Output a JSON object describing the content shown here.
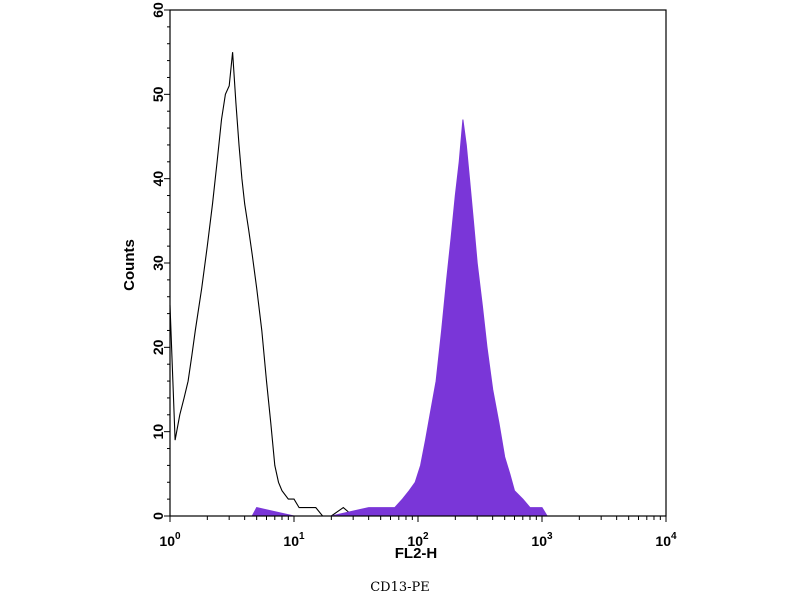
{
  "caption": "CD13-PE",
  "chart_data": {
    "type": "area",
    "title": "",
    "xlabel": "FL2-H",
    "ylabel": "Counts",
    "xscale": "log",
    "xlim": [
      1,
      10000
    ],
    "ylim": [
      0,
      60
    ],
    "xticks": [
      {
        "value": 1,
        "base": "10",
        "exp": "0"
      },
      {
        "value": 10,
        "base": "10",
        "exp": "1"
      },
      {
        "value": 100,
        "base": "10",
        "exp": "2"
      },
      {
        "value": 1000,
        "base": "10",
        "exp": "3"
      },
      {
        "value": 10000,
        "base": "10",
        "exp": "4"
      }
    ],
    "yticks": [
      0,
      10,
      20,
      30,
      40,
      50,
      60
    ],
    "grid": false,
    "series": [
      {
        "style": "outline",
        "color": "#000000",
        "x": [
          1.0,
          1.1,
          1.2,
          1.3,
          1.4,
          1.5,
          1.6,
          1.8,
          2.0,
          2.2,
          2.4,
          2.6,
          2.8,
          3.0,
          3.2,
          3.4,
          3.6,
          3.8,
          4.0,
          4.3,
          4.6,
          5.0,
          5.5,
          6.0,
          6.5,
          7.0,
          7.5,
          8.0,
          9.0,
          10.0,
          11.0,
          12.0,
          13.0,
          15.0,
          17.0,
          20.0,
          25.0,
          30.0
        ],
        "y": [
          25,
          9,
          12,
          14,
          16,
          19,
          22,
          27,
          32,
          37,
          42,
          47,
          50,
          51,
          55,
          49,
          44,
          40,
          37,
          34,
          31,
          27,
          22,
          16,
          11,
          6,
          4,
          3,
          2,
          2,
          1,
          1,
          1,
          1,
          0,
          0,
          1,
          0
        ]
      },
      {
        "style": "filled",
        "color": "#7a36d8",
        "x": [
          4.6,
          5.0,
          10.0,
          20.0,
          40.0,
          55.0,
          65.0,
          75.0,
          85.0,
          95.0,
          105.0,
          115.0,
          125.0,
          140.0,
          155.0,
          170.0,
          185.0,
          200.0,
          215.0,
          230.0,
          245.0,
          260.0,
          280.0,
          300.0,
          330.0,
          360.0,
          400.0,
          450.0,
          500.0,
          550.0,
          600.0,
          700.0,
          800.0,
          900.0,
          1000.0,
          1100.0
        ],
        "y": [
          0,
          1,
          0,
          0,
          1,
          1,
          1,
          2,
          3,
          4,
          6,
          9,
          12,
          16,
          22,
          28,
          33,
          38,
          42,
          47,
          44,
          40,
          35,
          30,
          25,
          20,
          15,
          11,
          7,
          5,
          3,
          2,
          1,
          1,
          1,
          0
        ]
      }
    ]
  }
}
